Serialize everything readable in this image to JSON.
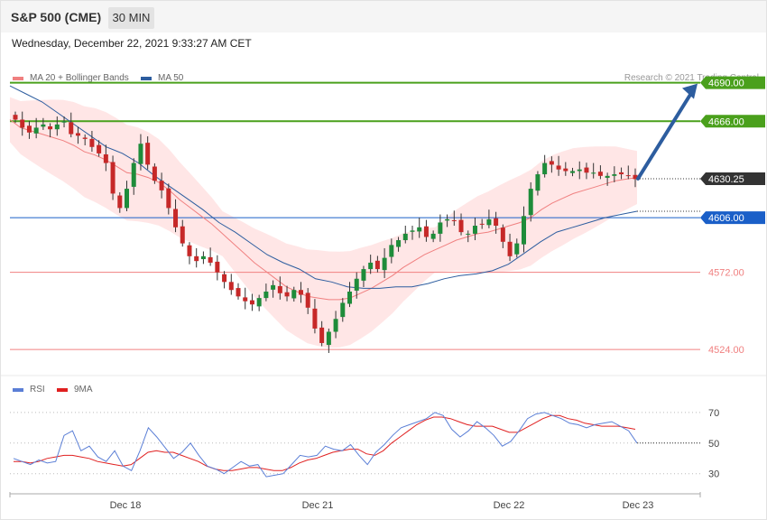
{
  "header": {
    "title": "S&P 500 (CME)",
    "timeframe": "30 MIN",
    "datetime": "Wednesday, December 22, 2021 9:33:27 AM CET"
  },
  "legend": {
    "ma20_label": "MA 20 + Bollinger Bands",
    "ma50_label": "MA 50",
    "credit": "Research © 2021 Trading Central",
    "rsi_label": "RSI",
    "rsi_ma_label": "9MA"
  },
  "colors": {
    "ma20": "#f08080",
    "band": "#ffdede",
    "ma50": "#2d5d9f",
    "candle_up": "#1e8c3a",
    "candle_down": "#c62828",
    "resistance": "#4aa01c",
    "pivot": "#1a5fc8",
    "support": "#f08080",
    "last_price": "#333333",
    "rsi": "#5b7fd6",
    "rsi_ma": "#e02020"
  },
  "chart_data": [
    {
      "type": "candlestick",
      "title": "S&P 500 (CME) 30 MIN",
      "ylim": [
        4510,
        4701
      ],
      "x_ticks": [
        "Dec 18",
        "Dec 21",
        "Dec 22",
        "Dec 23"
      ],
      "price_path": [
        4667,
        4662,
        4659,
        4662,
        4664,
        4661,
        4664,
        4666,
        4658,
        4657,
        4655,
        4650,
        4646,
        4640,
        4621,
        4612,
        4624,
        4640,
        4652,
        4639,
        4629,
        4623,
        4612,
        4600,
        4590,
        4582,
        4579,
        4582,
        4578,
        4572,
        4566,
        4561,
        4557,
        4554,
        4552,
        4556,
        4560,
        4564,
        4559,
        4557,
        4561,
        4558,
        4550,
        4537,
        4528,
        4535,
        4543,
        4553,
        4560,
        4568,
        4574,
        4578,
        4574,
        4581,
        4589,
        4592,
        4596,
        4598,
        4600,
        4594,
        4596,
        4603,
        4605,
        4604,
        4597,
        4596,
        4601,
        4602,
        4605,
        4601,
        4591,
        4582,
        4590,
        4607,
        4624,
        4633,
        4640,
        4639,
        4636,
        4635,
        4635,
        4636,
        4634,
        4634,
        4632,
        4632,
        4633,
        4633,
        4632,
        4630
      ],
      "ma20": [
        4667,
        4662,
        4660,
        4658,
        4656,
        4654,
        4651,
        4647,
        4645,
        4642,
        4638,
        4634,
        4633,
        4631,
        4628,
        4623,
        4617,
        4612,
        4607,
        4602,
        4596,
        4590,
        4584,
        4578,
        4573,
        4568,
        4563,
        4560,
        4557,
        4556,
        4555,
        4555,
        4556,
        4559,
        4562,
        4566,
        4570,
        4575,
        4579,
        4583,
        4586,
        4589,
        4592,
        4594,
        4596,
        4597,
        4599,
        4601,
        4603,
        4606,
        4611,
        4615,
        4618,
        4621,
        4623,
        4625,
        4627,
        4629,
        4630,
        4631
      ],
      "ma50": [
        4688,
        4683,
        4678,
        4671,
        4664,
        4657,
        4650,
        4646,
        4640,
        4632,
        4625,
        4618,
        4611,
        4603,
        4597,
        4590,
        4583,
        4578,
        4574,
        4568,
        4566,
        4563,
        4562,
        4562,
        4563,
        4563,
        4565,
        4568,
        4570,
        4571,
        4573,
        4577,
        4584,
        4591,
        4597,
        4600,
        4603,
        4606,
        4608,
        4610
      ],
      "rsi": [
        40,
        38,
        36,
        39,
        37,
        38,
        55,
        58,
        45,
        48,
        41,
        38,
        45,
        35,
        32,
        45,
        60,
        54,
        47,
        40,
        44,
        50,
        42,
        35,
        33,
        30,
        34,
        38,
        35,
        36,
        28,
        29,
        30,
        36,
        42,
        41,
        42,
        48,
        46,
        45,
        49,
        42,
        36,
        44,
        49,
        55,
        60,
        62,
        64,
        66,
        70,
        68,
        59,
        54,
        58,
        64,
        60,
        55,
        48,
        51,
        58,
        66,
        69,
        70,
        68,
        66,
        63,
        62,
        60,
        62,
        63,
        64,
        61,
        58,
        50
      ],
      "rsi_ma": [
        38,
        38,
        37,
        38,
        40,
        41,
        42,
        42,
        41,
        40,
        38,
        37,
        36,
        35,
        36,
        40,
        44,
        45,
        44,
        44,
        42,
        40,
        38,
        35,
        33,
        32,
        32,
        33,
        34,
        34,
        33,
        32,
        32,
        34,
        37,
        39,
        40,
        42,
        44,
        45,
        46,
        46,
        43,
        42,
        45,
        50,
        54,
        58,
        62,
        65,
        67,
        67,
        66,
        64,
        62,
        61,
        61,
        61,
        59,
        57,
        57,
        60,
        63,
        66,
        68,
        68,
        66,
        65,
        63,
        62,
        61,
        61,
        61,
        60,
        59
      ]
    }
  ],
  "levels": {
    "items": [
      {
        "value": 4690,
        "label": "4690.00",
        "kind": "resistance"
      },
      {
        "value": 4666,
        "label": "4666.00",
        "kind": "resistance"
      },
      {
        "value": 4630.25,
        "label": "4630.25",
        "kind": "last_price"
      },
      {
        "value": 4606,
        "label": "4606.00",
        "kind": "pivot"
      },
      {
        "value": 4572,
        "label": "4572.00",
        "kind": "support"
      },
      {
        "value": 4524,
        "label": "4524.00",
        "kind": "support"
      }
    ]
  },
  "rsi_axis": {
    "ticks": [
      {
        "value": 70,
        "label": "70"
      },
      {
        "value": 50,
        "label": "50"
      },
      {
        "value": 30,
        "label": "30"
      }
    ],
    "ylim": [
      21,
      77
    ]
  }
}
